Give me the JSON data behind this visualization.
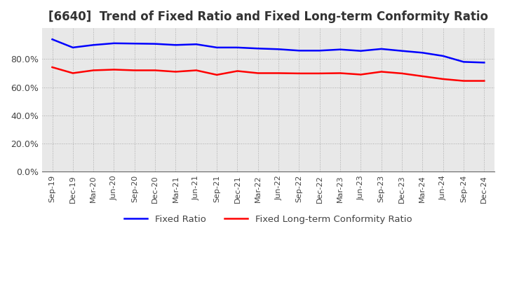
{
  "title": "[6640]  Trend of Fixed Ratio and Fixed Long-term Conformity Ratio",
  "x_labels": [
    "Sep-19",
    "Dec-19",
    "Mar-20",
    "Jun-20",
    "Sep-20",
    "Dec-20",
    "Mar-21",
    "Jun-21",
    "Sep-21",
    "Dec-21",
    "Mar-22",
    "Jun-22",
    "Sep-22",
    "Dec-22",
    "Mar-23",
    "Jun-23",
    "Sep-23",
    "Dec-23",
    "Mar-24",
    "Jun-24",
    "Sep-24",
    "Dec-24"
  ],
  "fixed_ratio": [
    0.94,
    0.882,
    0.9,
    0.912,
    0.91,
    0.908,
    0.9,
    0.905,
    0.882,
    0.882,
    0.875,
    0.87,
    0.86,
    0.86,
    0.868,
    0.858,
    0.872,
    0.858,
    0.845,
    0.822,
    0.78,
    0.775
  ],
  "fixed_lt_ratio": [
    0.742,
    0.7,
    0.72,
    0.725,
    0.72,
    0.72,
    0.71,
    0.72,
    0.688,
    0.715,
    0.7,
    0.7,
    0.698,
    0.698,
    0.7,
    0.69,
    0.71,
    0.698,
    0.678,
    0.658,
    0.645,
    0.645
  ],
  "fixed_ratio_color": "#0000FF",
  "fixed_lt_ratio_color": "#FF0000",
  "ylim": [
    0.0,
    1.02
  ],
  "yticks": [
    0.0,
    0.2,
    0.4,
    0.6,
    0.8
  ],
  "background_color": "#ffffff",
  "plot_bg_color": "#e8e8e8",
  "grid_color": "#aaaaaa",
  "title_fontsize": 12,
  "legend_labels": [
    "Fixed Ratio",
    "Fixed Long-term Conformity Ratio"
  ]
}
